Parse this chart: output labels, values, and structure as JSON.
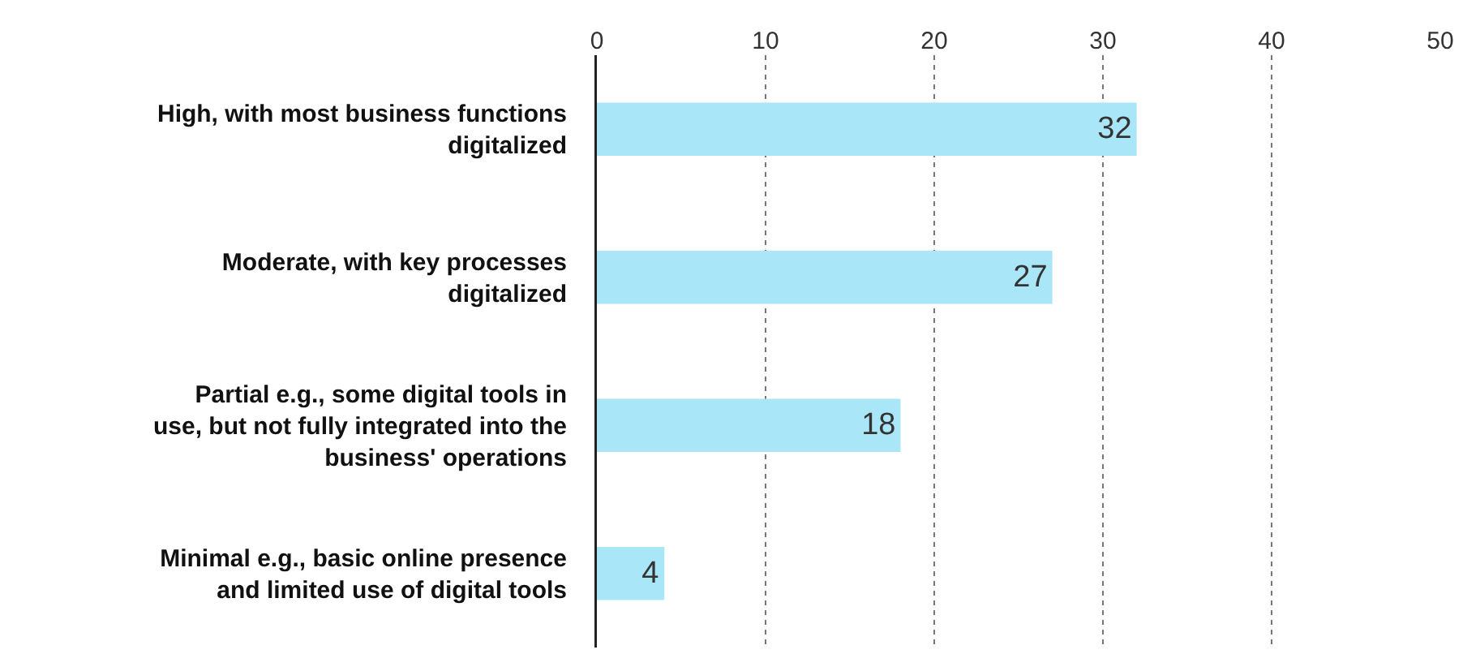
{
  "chart_data": {
    "type": "bar",
    "orientation": "horizontal",
    "categories": [
      "High, with most business functions digitalized",
      "Moderate, with key processes digitalized",
      "Partial e.g., some digital tools in use, but not fully integrated into the business' operations",
      "Minimal e.g., basic online presence and limited use of digital tools"
    ],
    "values": [
      32,
      27,
      18,
      4
    ],
    "color": "#a9e6f7",
    "data_labels": true,
    "xlim": [
      0,
      50
    ],
    "xticks": [
      0,
      10,
      20,
      30,
      40,
      50
    ],
    "grid": "x"
  }
}
